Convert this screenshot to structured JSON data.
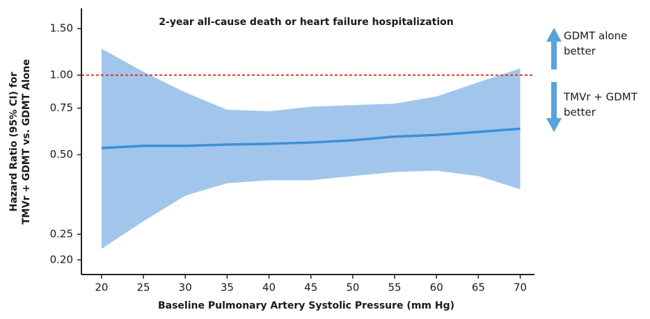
{
  "chart_data": {
    "type": "line",
    "title": "2-year all-cause death or heart failure hospitalization",
    "xlabel": "Baseline Pulmonary Artery Systolic Pressure (mm Hg)",
    "ylabel": [
      "Hazard Ratio (95% CI) for",
      "TMVr + GDMT vs. GDMT Alone"
    ],
    "x": [
      20,
      25,
      30,
      35,
      40,
      45,
      50,
      55,
      60,
      65,
      70
    ],
    "values": [
      0.53,
      0.54,
      0.54,
      0.546,
      0.55,
      0.556,
      0.567,
      0.585,
      0.594,
      0.61,
      0.627
    ],
    "ci_upper": [
      1.26,
      1.03,
      0.86,
      0.74,
      0.73,
      0.76,
      0.77,
      0.78,
      0.83,
      0.94,
      1.06
    ],
    "ci_lower": [
      0.22,
      0.28,
      0.35,
      0.39,
      0.4,
      0.4,
      0.415,
      0.43,
      0.435,
      0.415,
      0.37
    ],
    "color": "#3d8fd8",
    "band_color": "#a2c6eb",
    "reference_line": 1,
    "reference_color": "#e2372c",
    "log_y": true,
    "xlim": [
      17.6,
      71.7
    ],
    "xticks": [
      20,
      25,
      30,
      35,
      40,
      45,
      50,
      55,
      60,
      65,
      70
    ],
    "ylim": [
      0.176,
      1.79
    ],
    "yticks": [
      {
        "value": 0.2,
        "label": "0.20"
      },
      {
        "value": 0.25,
        "label": "0.25"
      },
      {
        "value": 0.5,
        "label": "0.50"
      },
      {
        "value": 0.75,
        "label": "0.75"
      },
      {
        "value": 1,
        "label": "1.00"
      },
      {
        "value": 1.5,
        "label": "1.50"
      }
    ],
    "annotations": [
      [
        "GDMT alone",
        "better"
      ],
      [
        "TMVr + GDMT",
        "better"
      ]
    ]
  }
}
